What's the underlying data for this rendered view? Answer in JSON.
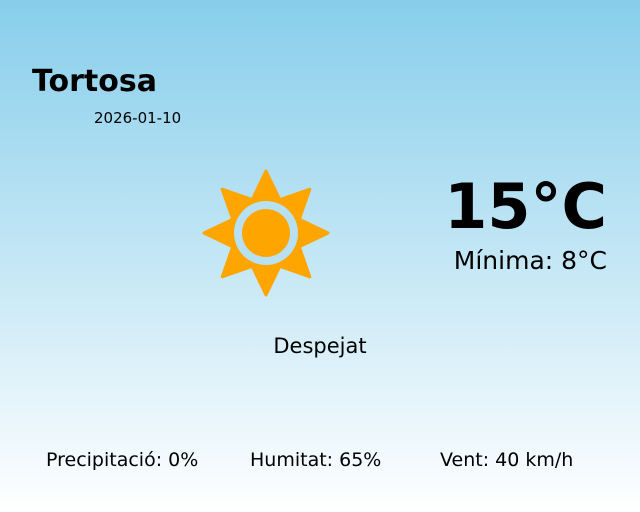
{
  "city": "Tortosa",
  "date": "2026-01-10",
  "temperature": "15°C",
  "minimum": "Mínima: 8°C",
  "condition": "Despejat",
  "condition_icon": "sun-icon",
  "stats": {
    "precipitation": "Precipitació: 0%",
    "humidity": "Humitat: 65%",
    "wind": "Vent: 40 km/h"
  },
  "colors": {
    "sun": "#ffa500",
    "sky_top": "#87ceeb",
    "sky_bottom": "#ffffff"
  }
}
